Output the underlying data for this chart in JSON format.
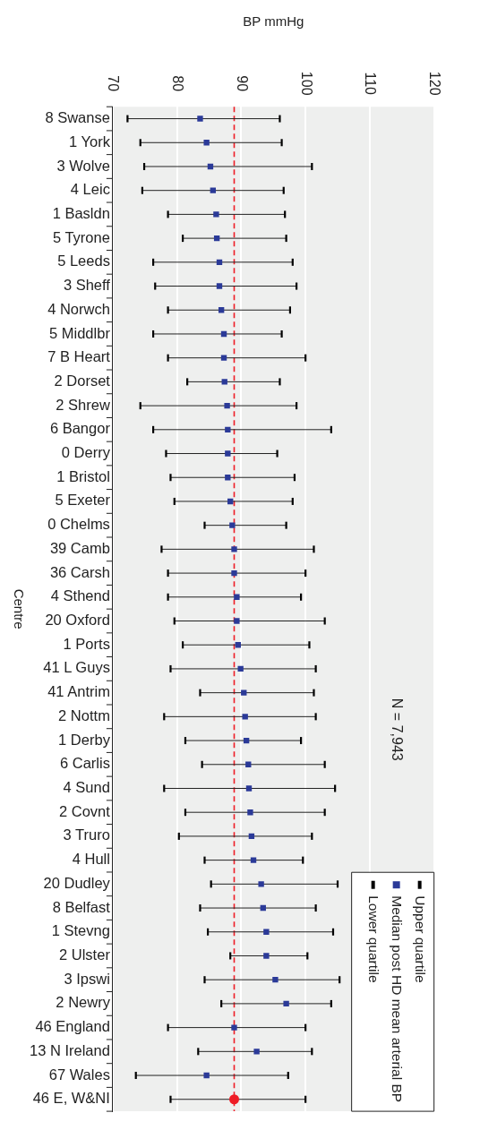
{
  "chart_data": {
    "type": "scatter",
    "orientation": "horizontal",
    "xlabel": "BP mmHg",
    "ylabel": "Centre",
    "categories": [
      "8 Swanse",
      "1 York",
      "3 Wolve",
      "4 Leic",
      "1 Basldn",
      "5 Tyrone",
      "5 Leeds",
      "3 Sheff",
      "4 Norwch",
      "5 Middlbr",
      "7 B Heart",
      "2 Dorset",
      "2 Shrew",
      "6 Bangor",
      "0 Derry",
      "1 Bristol",
      "5 Exeter",
      "0 Chelms",
      "39 Camb",
      "36 Carsh",
      "4 Sthend",
      "20 Oxford",
      "1 Ports",
      "41 L Guys",
      "41 Antrim",
      "2 Nottm",
      "1 Derby",
      "6 Carlis",
      "4 Sund",
      "2 Covnt",
      "3 Truro",
      "4 Hull",
      "20 Dudley",
      "8 Belfast",
      "1 Stevng",
      "2 Ulster",
      "3 Ipswi",
      "2 Newry",
      "46 England",
      "13 N Ireland",
      "67 Wales",
      "46 E, W&NI"
    ],
    "series": [
      {
        "name": "Upper quartile",
        "color": "#000000",
        "values": [
          null,
          null,
          null,
          null,
          null,
          null,
          null,
          null,
          null,
          null,
          null,
          null,
          null,
          null,
          null,
          null,
          null,
          null,
          null,
          null,
          null,
          null,
          null,
          null,
          null,
          null,
          null,
          null,
          null,
          null,
          null,
          null,
          null,
          null,
          null,
          null,
          null,
          null,
          null,
          null,
          null,
          null
        ]
      },
      {
        "name": "Median post HD mean arterial BP",
        "color": "#2b3a98",
        "marker": "square",
        "values": [
          83.6,
          84.6,
          85.2,
          85.6,
          86.1,
          86.2,
          86.6,
          86.6,
          86.9,
          87.3,
          87.3,
          87.4,
          87.8,
          87.9,
          87.9,
          87.9,
          88.3,
          88.6,
          88.9,
          88.9,
          89.3,
          89.3,
          89.5,
          89.9,
          90.4,
          90.6,
          90.8,
          91.1,
          91.2,
          91.4,
          91.6,
          91.9,
          93.1,
          93.4,
          93.9,
          93.9,
          95.3,
          97.0,
          88.9,
          92.4,
          84.6,
          null
        ],
        "errors": [
          [
            72.3,
            96.0
          ],
          [
            74.3,
            96.3
          ],
          [
            74.9,
            101.0
          ],
          [
            74.6,
            96.6
          ],
          [
            78.6,
            96.8
          ],
          [
            80.9,
            97.0
          ],
          [
            76.3,
            98.0
          ],
          [
            76.6,
            98.6
          ],
          [
            78.6,
            97.6
          ],
          [
            76.3,
            96.3
          ],
          [
            78.6,
            100.0
          ],
          [
            81.6,
            96.0
          ],
          [
            74.3,
            98.6
          ],
          [
            76.3,
            104.0
          ],
          [
            78.3,
            95.6
          ],
          [
            79.0,
            98.3
          ],
          [
            79.6,
            98.0
          ],
          [
            84.3,
            97.0
          ],
          [
            77.6,
            101.3
          ],
          [
            78.6,
            100.0
          ],
          [
            78.6,
            99.3
          ],
          [
            79.6,
            103.0
          ],
          [
            80.9,
            100.6
          ],
          [
            79.0,
            101.6
          ],
          [
            83.6,
            101.3
          ],
          [
            78.0,
            101.6
          ],
          [
            81.3,
            99.3
          ],
          [
            83.9,
            103.0
          ],
          [
            78.0,
            104.6
          ],
          [
            81.3,
            103.0
          ],
          [
            80.3,
            101.0
          ],
          [
            84.3,
            99.6
          ],
          [
            85.3,
            105.0
          ],
          [
            83.6,
            101.6
          ],
          [
            84.8,
            104.3
          ],
          [
            88.3,
            100.3
          ],
          [
            84.3,
            105.3
          ],
          [
            86.9,
            104.0
          ],
          [
            78.6,
            100.0
          ],
          [
            83.3,
            101.0
          ],
          [
            73.6,
            97.3
          ],
          null
        ]
      },
      {
        "name": "Lower quartile",
        "color": "#000000",
        "values": [
          null,
          null,
          null,
          null,
          null,
          null,
          null,
          null,
          null,
          null,
          null,
          null,
          null,
          null,
          null,
          null,
          null,
          null,
          null,
          null,
          null,
          null,
          null,
          null,
          null,
          null,
          null,
          null,
          null,
          null,
          null,
          null,
          null,
          null,
          null,
          null,
          null,
          null,
          null,
          null,
          null,
          null
        ]
      },
      {
        "color": "#ee1c25",
        "marker": "circle",
        "values": [
          null,
          null,
          null,
          null,
          null,
          null,
          null,
          null,
          null,
          null,
          null,
          null,
          null,
          null,
          null,
          null,
          null,
          null,
          null,
          null,
          null,
          null,
          null,
          null,
          null,
          null,
          null,
          null,
          null,
          null,
          null,
          null,
          null,
          null,
          null,
          null,
          null,
          null,
          null,
          null,
          null,
          88.9
        ],
        "errors": [
          null,
          null,
          null,
          null,
          null,
          null,
          null,
          null,
          null,
          null,
          null,
          null,
          null,
          null,
          null,
          null,
          null,
          null,
          null,
          null,
          null,
          null,
          null,
          null,
          null,
          null,
          null,
          null,
          null,
          null,
          null,
          null,
          null,
          null,
          null,
          null,
          null,
          null,
          null,
          null,
          null,
          [
            79.0,
            100.0
          ]
        ]
      }
    ],
    "xlim": [
      70,
      120
    ],
    "xticks": [
      70,
      80,
      90,
      100,
      110,
      120
    ],
    "grid": "x",
    "legend": "bottom right",
    "ref_lines": [
      {
        "axis": "x",
        "value": 88.9,
        "color": "#ee1c25",
        "line_style": "dashed"
      }
    ],
    "annotations": [
      "N = 7,943"
    ]
  }
}
